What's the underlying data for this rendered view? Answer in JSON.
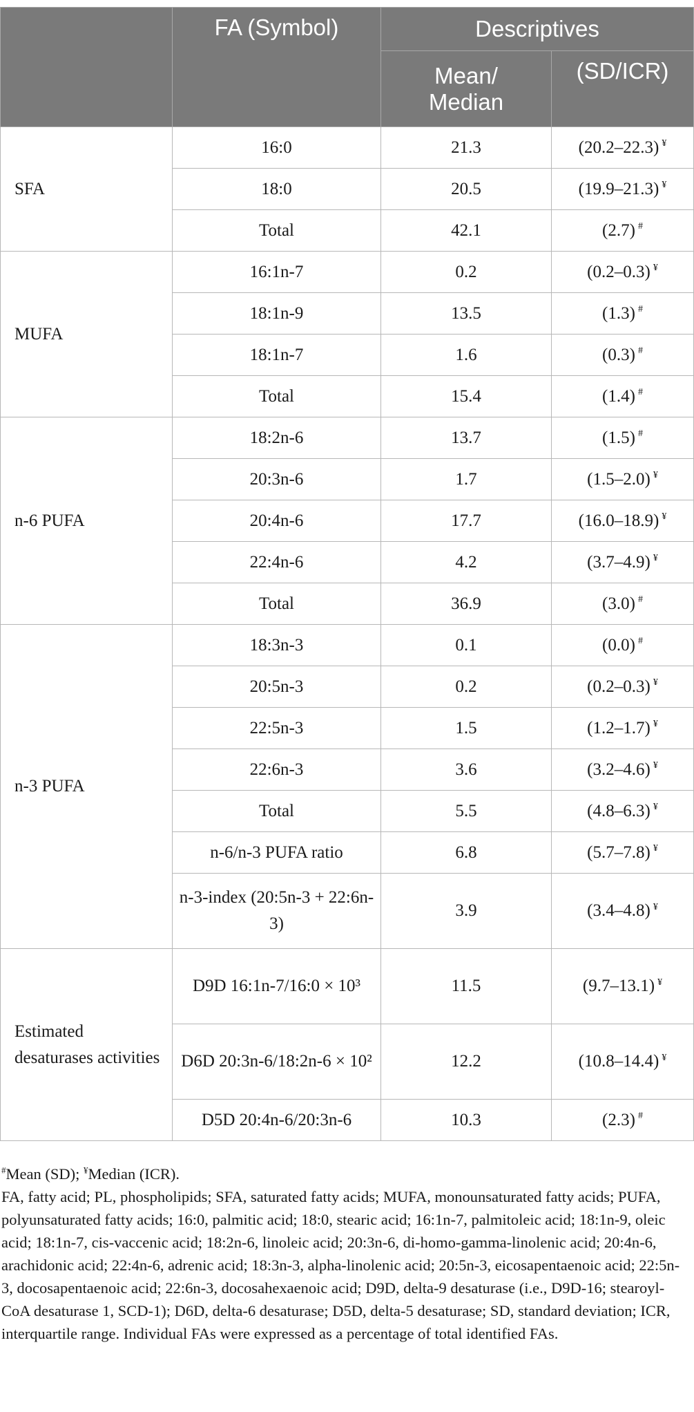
{
  "table": {
    "headers": {
      "fa_symbol": "FA (Symbol)",
      "descriptives": "Descriptives",
      "mean_median": "Mean/ Median",
      "sd_icr": "(SD/ICR)"
    },
    "groups": [
      {
        "label": "SFA",
        "rows": [
          {
            "fa": "16:0",
            "value": "21.3",
            "spread": "(20.2–22.3)",
            "mark": "¥"
          },
          {
            "fa": "18:0",
            "value": "20.5",
            "spread": "(19.9–21.3)",
            "mark": "¥"
          },
          {
            "fa": "Total",
            "value": "42.1",
            "spread": "(2.7)",
            "mark": "#"
          }
        ]
      },
      {
        "label": "MUFA",
        "rows": [
          {
            "fa": "16:1n-7",
            "value": "0.2",
            "spread": "(0.2–0.3)",
            "mark": "¥"
          },
          {
            "fa": "18:1n-9",
            "value": "13.5",
            "spread": "(1.3)",
            "mark": "#"
          },
          {
            "fa": "18:1n-7",
            "value": "1.6",
            "spread": "(0.3)",
            "mark": "#"
          },
          {
            "fa": "Total",
            "value": "15.4",
            "spread": "(1.4)",
            "mark": "#"
          }
        ]
      },
      {
        "label": "n-6 PUFA",
        "rows": [
          {
            "fa": "18:2n-6",
            "value": "13.7",
            "spread": "(1.5)",
            "mark": "#"
          },
          {
            "fa": "20:3n-6",
            "value": "1.7",
            "spread": "(1.5–2.0)",
            "mark": "¥"
          },
          {
            "fa": "20:4n-6",
            "value": "17.7",
            "spread": "(16.0–18.9)",
            "mark": "¥"
          },
          {
            "fa": "22:4n-6",
            "value": "4.2",
            "spread": "(3.7–4.9)",
            "mark": "¥"
          },
          {
            "fa": "Total",
            "value": "36.9",
            "spread": "(3.0)",
            "mark": "#"
          }
        ]
      },
      {
        "label": "n-3 PUFA",
        "rows": [
          {
            "fa": "18:3n-3",
            "value": "0.1",
            "spread": "(0.0)",
            "mark": "#"
          },
          {
            "fa": "20:5n-3",
            "value": "0.2",
            "spread": "(0.2–0.3)",
            "mark": "¥"
          },
          {
            "fa": "22:5n-3",
            "value": "1.5",
            "spread": "(1.2–1.7)",
            "mark": "¥"
          },
          {
            "fa": "22:6n-3",
            "value": "3.6",
            "spread": "(3.2–4.6)",
            "mark": "¥"
          },
          {
            "fa": "Total",
            "value": "5.5",
            "spread": "(4.8–6.3)",
            "mark": "¥"
          },
          {
            "fa": "n-6/n-3 PUFA ratio",
            "value": "6.8",
            "spread": "(5.7–7.8)",
            "mark": "¥"
          },
          {
            "fa": "n-3-index (20:5n-3 + 22:6n-3)",
            "value": "3.9",
            "spread": "(3.4–4.8)",
            "mark": "¥"
          }
        ]
      },
      {
        "label": "Estimated desaturases activities",
        "rows": [
          {
            "fa": "D9D 16:1n-7/16:0 × 10³",
            "value": "11.5",
            "spread": "(9.7–13.1)",
            "mark": "¥"
          },
          {
            "fa": "D6D 20:3n-6/18:2n-6 × 10²",
            "value": "12.2",
            "spread": "(10.8–14.4)",
            "mark": "¥"
          },
          {
            "fa": "D5D 20:4n-6/20:3n-6",
            "value": "10.3",
            "spread": "(2.3)",
            "mark": "#"
          }
        ]
      }
    ]
  },
  "footnotes": {
    "legend_mean_mark": "#",
    "legend_mean_text": "Mean (SD); ",
    "legend_median_mark": "¥",
    "legend_median_text": "Median (ICR).",
    "abbreviations": "FA, fatty acid; PL, phospholipids; SFA, saturated fatty acids; MUFA, monounsaturated fatty acids; PUFA, polyunsaturated fatty acids; 16:0, palmitic acid; 18:0, stearic acid; 16:1n-7, palmitoleic acid; 18:1n-9, oleic acid; 18:1n-7, cis-vaccenic acid; 18:2n-6, linoleic acid; 20:3n-6, di-homo-gamma-linolenic acid; 20:4n-6, arachidonic acid; 22:4n-6, adrenic acid; 18:3n-3, alpha-linolenic acid; 20:5n-3, eicosapentaenoic acid; 22:5n-3, docosapentaenoic acid; 22:6n-3, docosahexaenoic acid; D9D, delta-9 desaturase (i.e., D9D-16; stearoyl-CoA desaturase 1, SCD-1); D6D, delta-6 desaturase; D5D, delta-5 desaturase; SD, standard deviation; ICR, interquartile range. Individual FAs were expressed as a percentage of total identified FAs."
  }
}
